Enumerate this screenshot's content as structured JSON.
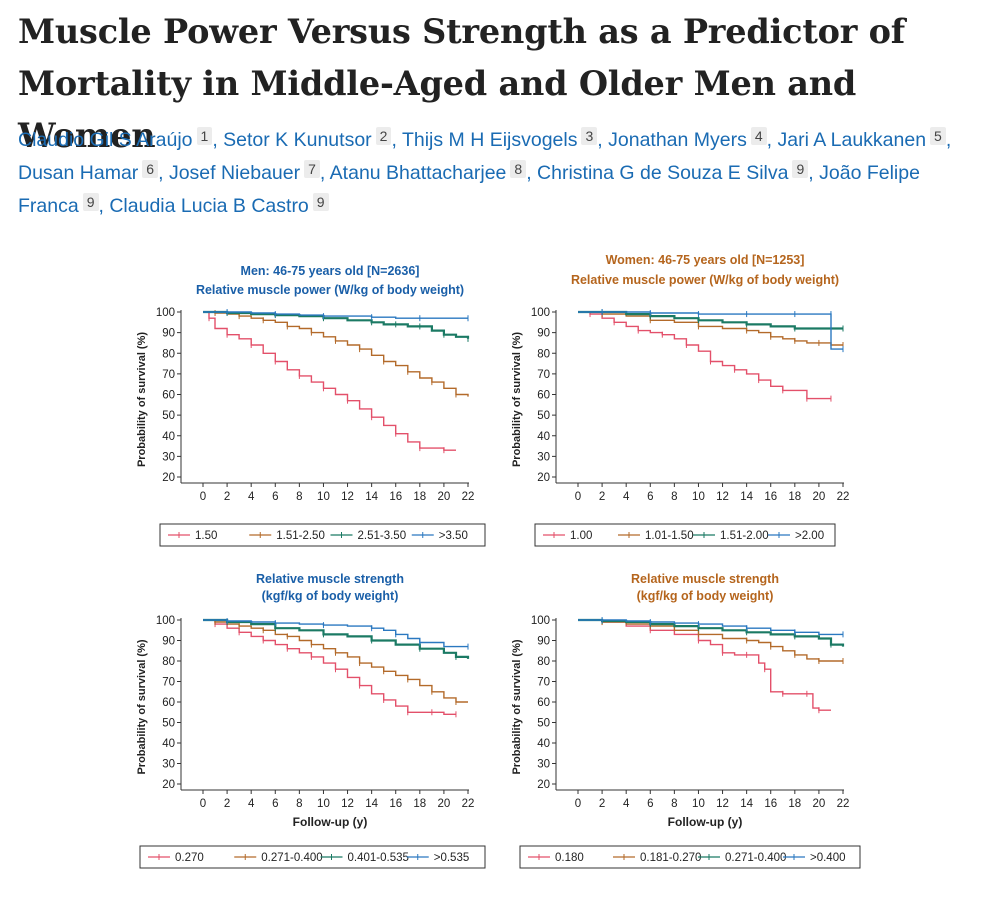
{
  "title": "Muscle Power Versus Strength as a Predictor of Mortality in Middle-Aged and Older Men and Women",
  "authors": [
    {
      "name": "Claudio Gil S Araújo",
      "aff": "1"
    },
    {
      "name": "Setor K Kunutsor",
      "aff": "2"
    },
    {
      "name": "Thijs M H Eijsvogels",
      "aff": "3"
    },
    {
      "name": "Jonathan Myers",
      "aff": "4"
    },
    {
      "name": "Jari A Laukkanen",
      "aff": "5"
    },
    {
      "name": "Dusan Hamar",
      "aff": "6"
    },
    {
      "name": "Josef Niebauer",
      "aff": "7"
    },
    {
      "name": "Atanu Bhattacharjee",
      "aff": "8"
    },
    {
      "name": "Christina G de Souza E Silva",
      "aff": "9"
    },
    {
      "name": "João Felipe Franca",
      "aff": "9"
    },
    {
      "name": "Claudia Lucia B Castro",
      "aff": "9"
    }
  ],
  "colors": {
    "red": "#e3506a",
    "orange": "#b36a2a",
    "green": "#1b7a64",
    "blue": "#2a78c0",
    "men_title": "#1a5fa8",
    "women_title": "#b5651d"
  },
  "chart_data": [
    {
      "id": "men-power",
      "type": "line",
      "title": [
        "Men: 46-75 years old [N=2636]",
        "Relative muscle power (W/kg of body weight)"
      ],
      "title_color": "#1a5fa8",
      "xlabel": "",
      "ylabel": "Probability of survival (%)",
      "xlim": [
        0,
        22
      ],
      "ylim": [
        20,
        100
      ],
      "xticks": [
        0,
        2,
        4,
        6,
        8,
        10,
        12,
        14,
        16,
        18,
        20,
        22
      ],
      "yticks": [
        20,
        30,
        40,
        50,
        60,
        70,
        80,
        90,
        100
      ],
      "legend": [
        "1.50",
        "1.51-2.50",
        "2.51-3.50",
        ">3.50"
      ],
      "series": [
        {
          "name": "1.50",
          "color": "#e3506a",
          "x": [
            0,
            0.5,
            1,
            2,
            3,
            4,
            5,
            6,
            7,
            8,
            9,
            10,
            11,
            12,
            13,
            14,
            15,
            16,
            17,
            18,
            19,
            20,
            21
          ],
          "y": [
            100,
            97,
            92,
            89,
            87,
            84,
            80,
            76,
            72,
            69,
            66,
            63,
            60,
            57,
            53,
            49,
            45,
            41,
            37,
            34,
            34,
            33,
            33
          ]
        },
        {
          "name": "1.51-2.50",
          "color": "#b36a2a",
          "x": [
            0,
            1,
            2,
            3,
            4,
            5,
            6,
            7,
            8,
            9,
            10,
            11,
            12,
            13,
            14,
            15,
            16,
            17,
            18,
            19,
            20,
            21,
            22
          ],
          "y": [
            100,
            99.5,
            99,
            98,
            97,
            96,
            95,
            93,
            92,
            90,
            88,
            86,
            84,
            82,
            79,
            76,
            74,
            71,
            68,
            66,
            63,
            60,
            59
          ]
        },
        {
          "name": "2.51-3.50",
          "color": "#1b7a64",
          "x": [
            0,
            2,
            4,
            6,
            8,
            10,
            12,
            14,
            15,
            16,
            17,
            18,
            19,
            20,
            21,
            22
          ],
          "y": [
            100,
            99.5,
            99,
            98.5,
            98,
            97,
            96,
            95,
            94,
            94,
            93,
            93,
            91,
            89,
            88,
            87
          ]
        },
        {
          "name": ">3.50",
          "color": "#2a78c0",
          "x": [
            0,
            2,
            4,
            6,
            8,
            10,
            12,
            14,
            16,
            18,
            20,
            22
          ],
          "y": [
            100,
            100,
            99.5,
            99,
            98.5,
            98,
            98,
            97.5,
            97,
            97,
            97,
            97
          ]
        }
      ]
    },
    {
      "id": "women-power",
      "type": "line",
      "title": [
        "Women: 46-75 years old [N=1253]",
        "Relative muscle power (W/kg of body weight)"
      ],
      "title_color": "#b5651d",
      "xlabel": "",
      "ylabel": "Probability of survival (%)",
      "xlim": [
        0,
        22
      ],
      "ylim": [
        20,
        100
      ],
      "xticks": [
        0,
        2,
        4,
        6,
        8,
        10,
        12,
        14,
        16,
        18,
        20,
        22
      ],
      "yticks": [
        20,
        30,
        40,
        50,
        60,
        70,
        80,
        90,
        100
      ],
      "legend": [
        "1.00",
        "1.01-1.50",
        "1.51-2.00",
        ">2.00"
      ],
      "series": [
        {
          "name": "1.00",
          "color": "#e3506a",
          "x": [
            0,
            1,
            2,
            3,
            4,
            5,
            6,
            7,
            8,
            9,
            10,
            11,
            12,
            13,
            14,
            15,
            16,
            17,
            18,
            19,
            20,
            21
          ],
          "y": [
            100,
            99,
            97,
            95,
            93,
            91,
            90,
            89,
            87,
            84,
            81,
            76,
            74,
            72,
            70,
            67,
            64,
            62,
            62,
            58,
            58,
            58
          ]
        },
        {
          "name": "1.01-1.50",
          "color": "#b36a2a",
          "x": [
            0,
            2,
            4,
            6,
            8,
            10,
            12,
            14,
            15,
            16,
            17,
            18,
            19,
            20,
            21,
            22
          ],
          "y": [
            100,
            99,
            98,
            96,
            95,
            93,
            92,
            91,
            90,
            88,
            87,
            86,
            85,
            85,
            84,
            84
          ]
        },
        {
          "name": "1.51-2.00",
          "color": "#1b7a64",
          "x": [
            0,
            2,
            4,
            6,
            8,
            10,
            12,
            14,
            16,
            18,
            20,
            22
          ],
          "y": [
            100,
            100,
            99,
            98,
            97,
            96,
            95,
            94,
            93,
            92,
            92,
            92
          ]
        },
        {
          "name": ">2.00",
          "color": "#2a78c0",
          "x": [
            0,
            2,
            4,
            6,
            8,
            10,
            12,
            14,
            16,
            18,
            20,
            21,
            21,
            22
          ],
          "y": [
            100,
            100,
            100,
            99.5,
            99.5,
            99,
            99,
            99,
            99,
            99,
            99,
            99,
            82,
            82
          ]
        }
      ]
    },
    {
      "id": "men-strength",
      "type": "line",
      "title": [
        "Relative muscle strength",
        "(kgf/kg of body weight)"
      ],
      "title_color": "#1a5fa8",
      "xlabel": "Follow-up (y)",
      "ylabel": "Probability of survival (%)",
      "xlim": [
        0,
        22
      ],
      "ylim": [
        20,
        100
      ],
      "xticks": [
        0,
        2,
        4,
        6,
        8,
        10,
        12,
        14,
        16,
        18,
        20,
        22
      ],
      "yticks": [
        20,
        30,
        40,
        50,
        60,
        70,
        80,
        90,
        100
      ],
      "legend": [
        "0.270",
        "0.271-0.400",
        "0.401-0.535",
        ">0.535"
      ],
      "series": [
        {
          "name": "0.270",
          "color": "#e3506a",
          "x": [
            0,
            1,
            2,
            3,
            4,
            5,
            6,
            7,
            8,
            9,
            10,
            11,
            12,
            13,
            14,
            15,
            16,
            17,
            18,
            19,
            20,
            21
          ],
          "y": [
            100,
            98,
            96,
            94,
            92,
            90,
            88,
            86,
            84,
            82,
            79,
            76,
            72,
            68,
            64,
            61,
            58,
            55,
            55,
            55,
            54,
            54
          ]
        },
        {
          "name": "0.271-0.400",
          "color": "#b36a2a",
          "x": [
            0,
            1,
            2,
            3,
            4,
            5,
            6,
            7,
            8,
            9,
            10,
            11,
            12,
            13,
            14,
            15,
            16,
            17,
            18,
            19,
            20,
            21,
            22
          ],
          "y": [
            100,
            99,
            98,
            97,
            96,
            95,
            93,
            92,
            90,
            88,
            86,
            84,
            82,
            79,
            77,
            75,
            73,
            71,
            68,
            65,
            62,
            60,
            60
          ]
        },
        {
          "name": "0.401-0.535",
          "color": "#1b7a64",
          "x": [
            0,
            2,
            4,
            6,
            8,
            10,
            12,
            14,
            16,
            18,
            20,
            21,
            22
          ],
          "y": [
            100,
            99,
            98,
            96,
            95,
            93,
            92,
            90,
            88,
            86,
            84,
            82,
            81
          ]
        },
        {
          "name": ">0.535",
          "color": "#2a78c0",
          "x": [
            0,
            2,
            4,
            6,
            8,
            10,
            12,
            14,
            15,
            16,
            17,
            18,
            20,
            22
          ],
          "y": [
            100,
            99.5,
            99,
            98.5,
            98,
            97.5,
            97,
            96,
            95,
            93,
            91,
            89,
            87,
            87
          ]
        }
      ]
    },
    {
      "id": "women-strength",
      "type": "line",
      "title": [
        "Relative muscle strength",
        "(kgf/kg of body weight)"
      ],
      "title_color": "#b5651d",
      "xlabel": "Follow-up (y)",
      "ylabel": "Probability of survival (%)",
      "xlim": [
        0,
        22
      ],
      "ylim": [
        20,
        100
      ],
      "xticks": [
        0,
        2,
        4,
        6,
        8,
        10,
        12,
        14,
        16,
        18,
        20,
        22
      ],
      "yticks": [
        20,
        30,
        40,
        50,
        60,
        70,
        80,
        90,
        100
      ],
      "legend": [
        "0.180",
        "0.181-0.270",
        "0.271-0.400",
        ">0.400"
      ],
      "series": [
        {
          "name": "0.180",
          "color": "#e3506a",
          "x": [
            0,
            2,
            4,
            6,
            8,
            10,
            11,
            12,
            13,
            14,
            15,
            15.5,
            16,
            17,
            18,
            19,
            19.5,
            20,
            21
          ],
          "y": [
            100,
            99,
            97,
            95,
            93,
            90,
            88,
            84,
            83,
            83,
            79,
            76,
            65,
            64,
            64,
            64,
            57,
            56,
            56
          ]
        },
        {
          "name": "0.181-0.270",
          "color": "#b36a2a",
          "x": [
            0,
            2,
            4,
            6,
            8,
            10,
            12,
            14,
            15,
            16,
            17,
            18,
            19,
            20,
            21,
            22
          ],
          "y": [
            100,
            99,
            98,
            97,
            95,
            93,
            91,
            90,
            89,
            87,
            85,
            83,
            81,
            80,
            80,
            80
          ]
        },
        {
          "name": "0.271-0.400",
          "color": "#1b7a64",
          "x": [
            0,
            2,
            4,
            6,
            8,
            10,
            12,
            14,
            16,
            18,
            20,
            21,
            22
          ],
          "y": [
            100,
            99.5,
            99,
            98,
            97,
            96,
            95,
            94,
            93,
            92,
            91,
            88,
            87
          ]
        },
        {
          "name": ">0.400",
          "color": "#2a78c0",
          "x": [
            0,
            2,
            4,
            6,
            8,
            10,
            12,
            14,
            16,
            18,
            20,
            22
          ],
          "y": [
            100,
            100,
            99.5,
            99,
            98.5,
            98,
            97,
            96,
            95,
            94,
            93,
            93
          ]
        }
      ]
    }
  ]
}
